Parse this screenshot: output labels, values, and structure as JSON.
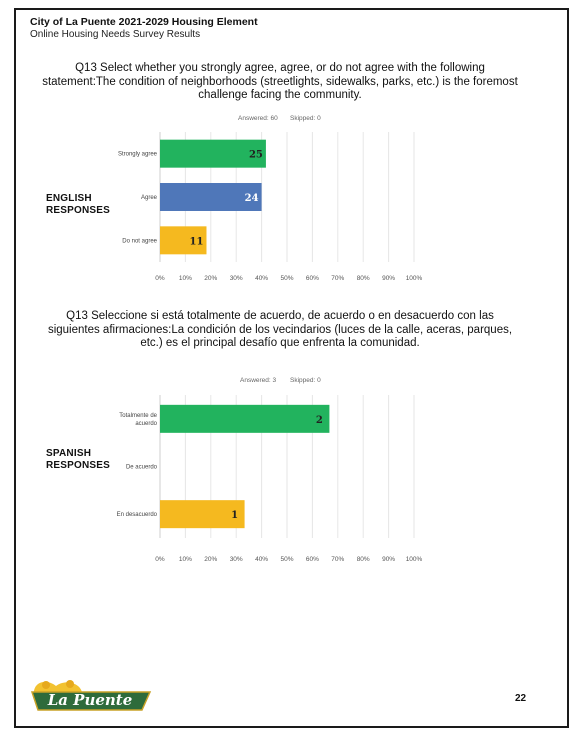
{
  "header": {
    "title": "City of La Puente 2021-2029 Housing Element",
    "subtitle": "Online Housing Needs Survey Results"
  },
  "logo_text": "La Puente",
  "page_number": "22",
  "colors": {
    "green": "#22b35e",
    "blue": "#4f77b9",
    "yellow": "#f5b91f",
    "grid": "#e6e6e6"
  },
  "chart_data": [
    {
      "type": "bar",
      "orientation": "horizontal",
      "question": "Q13 Select whether you strongly agree, agree, or do not agree with the following statement:The condition of neighborhoods (streetlights, sidewalks, parks, etc.) is the foremost challenge facing the community.",
      "answered": "Answered: 60",
      "skipped": "Skipped: 0",
      "side_label": "ENGLISH RESPONSES",
      "categories": [
        "Strongly agree",
        "Agree",
        "Do not agree"
      ],
      "values": [
        25,
        24,
        11
      ],
      "percent": [
        41.7,
        40.0,
        18.3
      ],
      "colors": [
        "#22b35e",
        "#4f77b9",
        "#f5b91f"
      ],
      "xlim": [
        0,
        100
      ],
      "ticks": [
        "0%",
        "10%",
        "20%",
        "30%",
        "40%",
        "50%",
        "60%",
        "70%",
        "80%",
        "90%",
        "100%"
      ],
      "grid": true
    },
    {
      "type": "bar",
      "orientation": "horizontal",
      "question": "Q13 Seleccione si está totalmente de acuerdo, de acuerdo o en desacuerdo con las siguientes afirmaciones:La condición de los vecindarios (luces de la calle, aceras, parques, etc.) es el principal desafío que enfrenta la comunidad.",
      "answered": "Answered: 3",
      "skipped": "Skipped: 0",
      "side_label": "SPANISH RESPONSES",
      "categories": [
        "Totalmente de acuerdo",
        "De acuerdo",
        "En desacuerdo"
      ],
      "values": [
        2,
        0,
        1
      ],
      "percent": [
        66.7,
        0,
        33.3
      ],
      "colors": [
        "#22b35e",
        "#4f77b9",
        "#f5b91f"
      ],
      "xlim": [
        0,
        100
      ],
      "ticks": [
        "0%",
        "10%",
        "20%",
        "30%",
        "40%",
        "50%",
        "60%",
        "70%",
        "80%",
        "90%",
        "100%"
      ],
      "grid": true
    }
  ]
}
